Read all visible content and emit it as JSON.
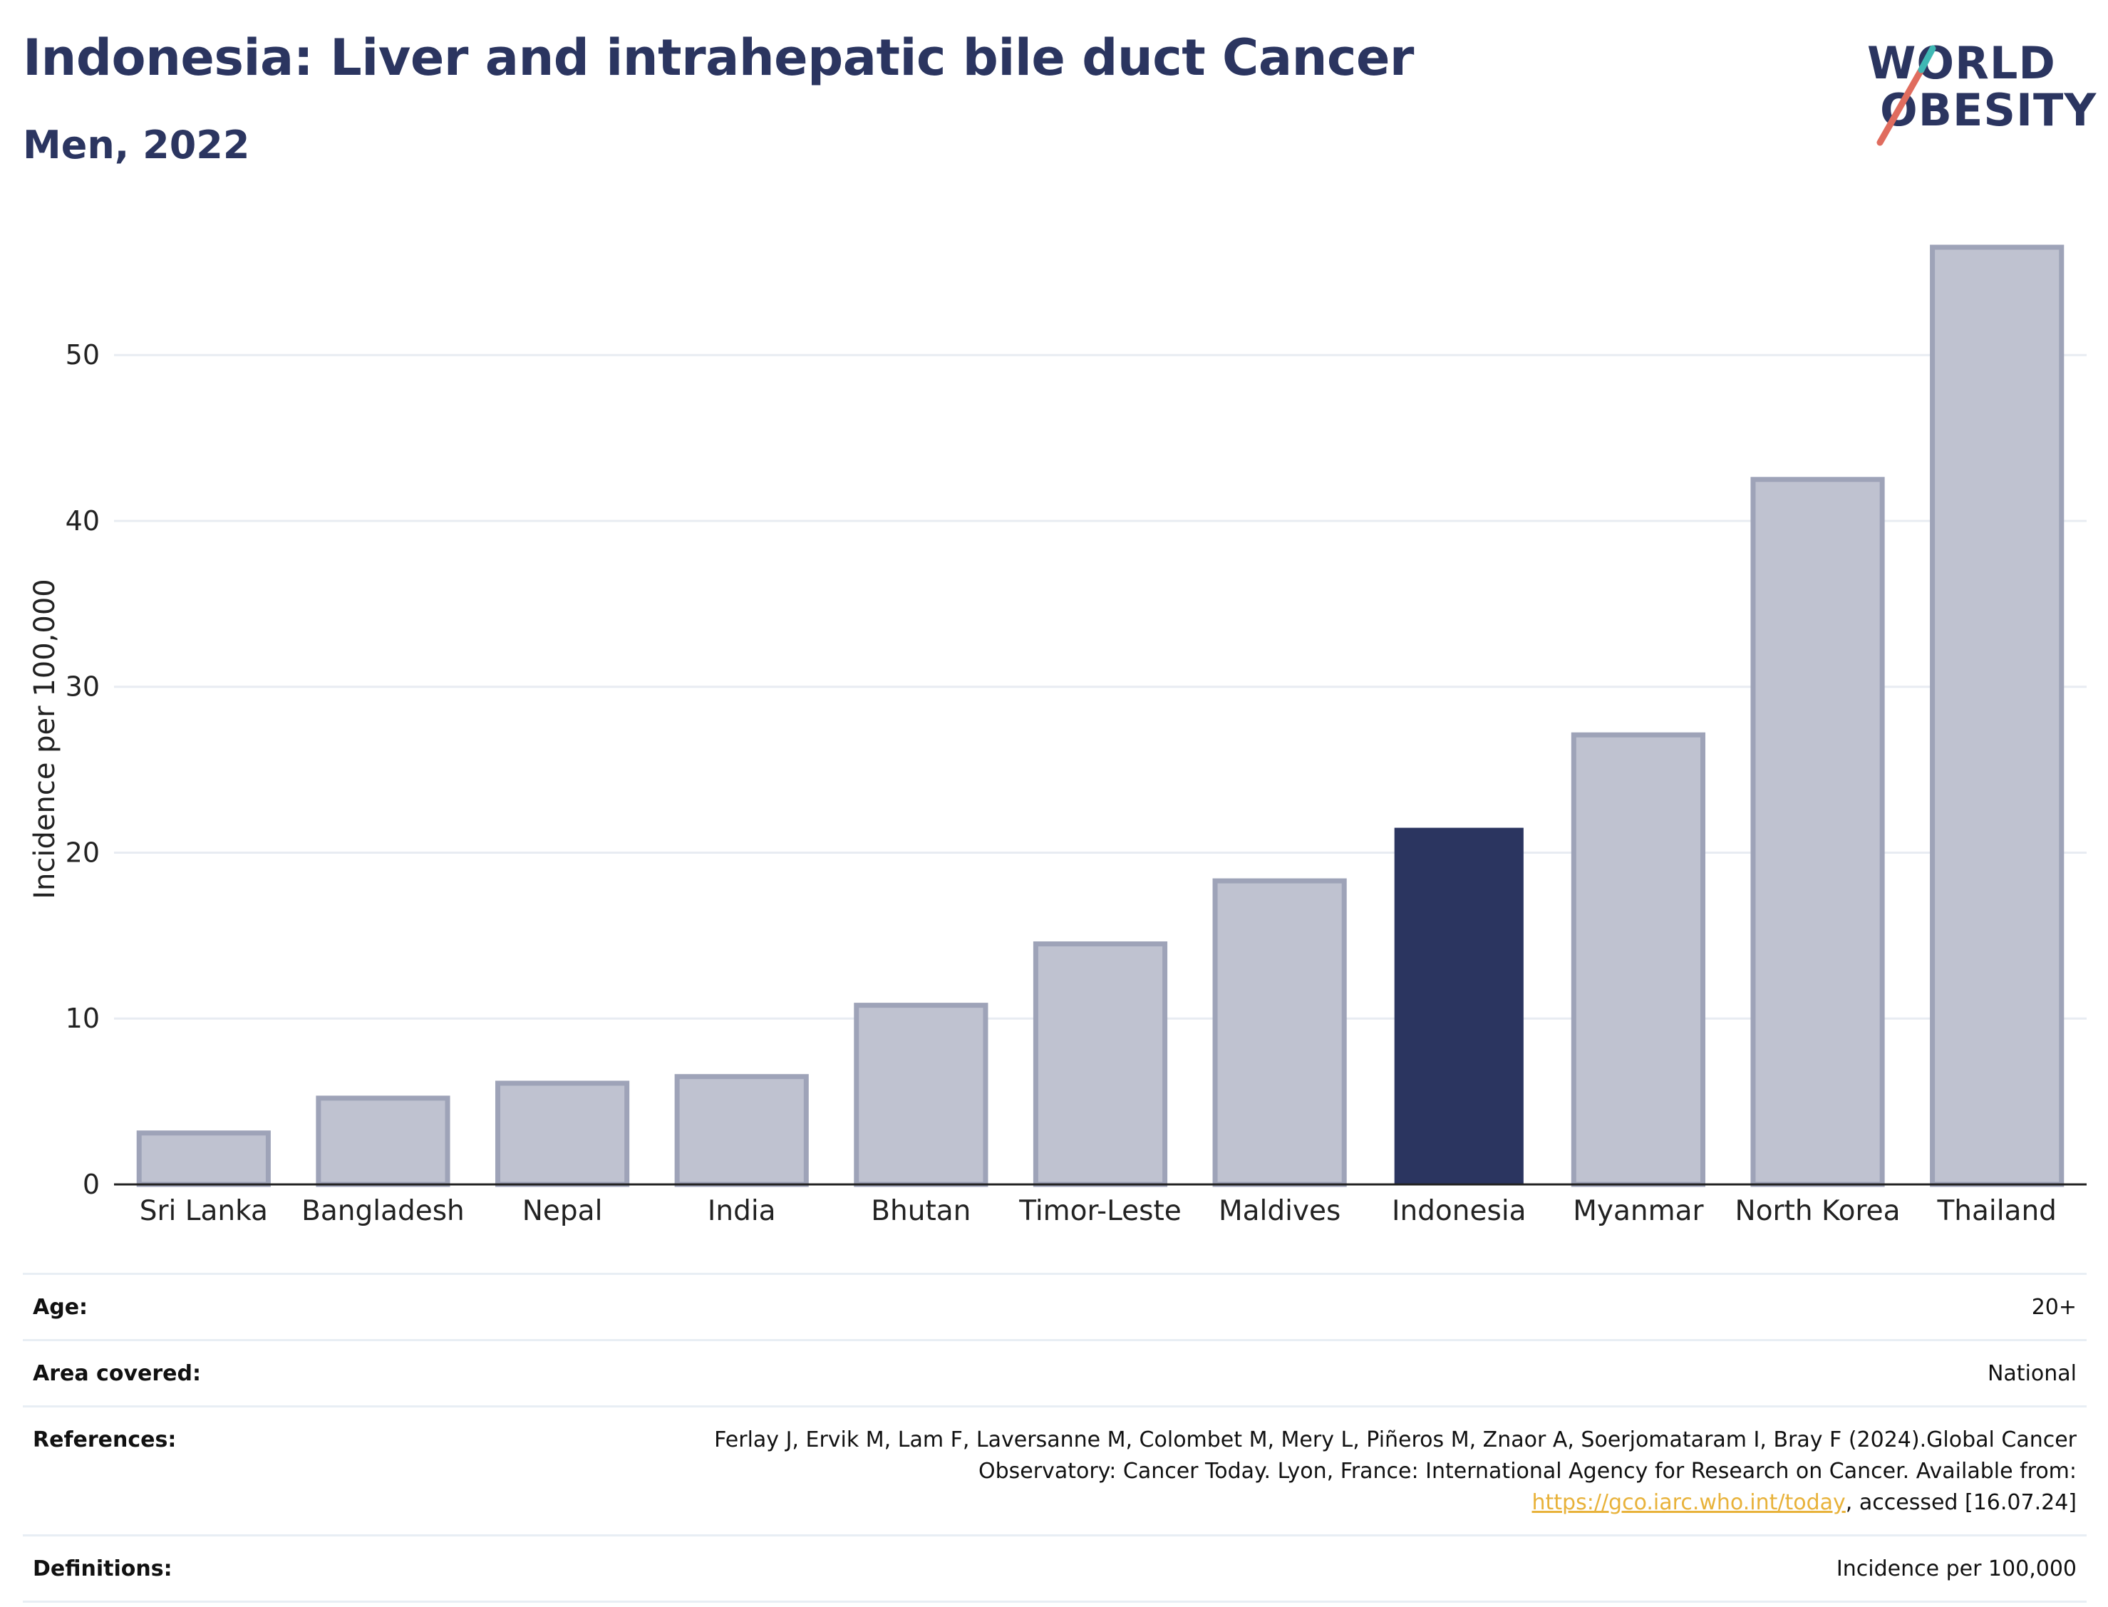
{
  "header": {
    "title": "Indonesia: Liver and intrahepatic bile duct Cancer",
    "subtitle": "Men, 2022",
    "logo_line1": "WORLD",
    "logo_line2": "OBESITY"
  },
  "colors": {
    "highlight": "#2b3560",
    "bar": "#bfc2d0",
    "bar_edge": "#9ea3b8",
    "link": "#e8b23a",
    "logo_accent_red": "#e06c5e",
    "logo_accent_teal": "#3fb8b4"
  },
  "chart_data": {
    "type": "bar",
    "categories": [
      "Sri Lanka",
      "Bangladesh",
      "Nepal",
      "India",
      "Bhutan",
      "Timor-Leste",
      "Maldives",
      "Indonesia",
      "Myanmar",
      "North Korea",
      "Thailand"
    ],
    "values": [
      3.1,
      5.2,
      6.1,
      6.5,
      10.8,
      14.5,
      18.3,
      21.5,
      27.1,
      42.5,
      56.5
    ],
    "highlight": "Indonesia",
    "ylabel": "Incidence per 100,000",
    "xlabel": "",
    "ylim": [
      0,
      58
    ],
    "yticks": [
      0,
      10,
      20,
      30,
      40,
      50
    ],
    "grid": true
  },
  "info": {
    "age_label": "Age:",
    "age_value": "20+",
    "area_label": "Area covered:",
    "area_value": "National",
    "references_label": "References:",
    "references_text_1": "Ferlay J, Ervik M, Lam F, Laversanne M, Colombet M, Mery L, Piñeros M, Znaor A, Soerjomataram I, Bray F (2024).Global Cancer Observatory: Cancer Today. Lyon, France: International Agency for Research on Cancer. Available from: ",
    "references_link": "https://gco.iarc.who.int/today",
    "references_text_2": ", accessed [16.07.24]",
    "definitions_label": "Definitions:",
    "definitions_value": "Incidence per 100,000"
  }
}
